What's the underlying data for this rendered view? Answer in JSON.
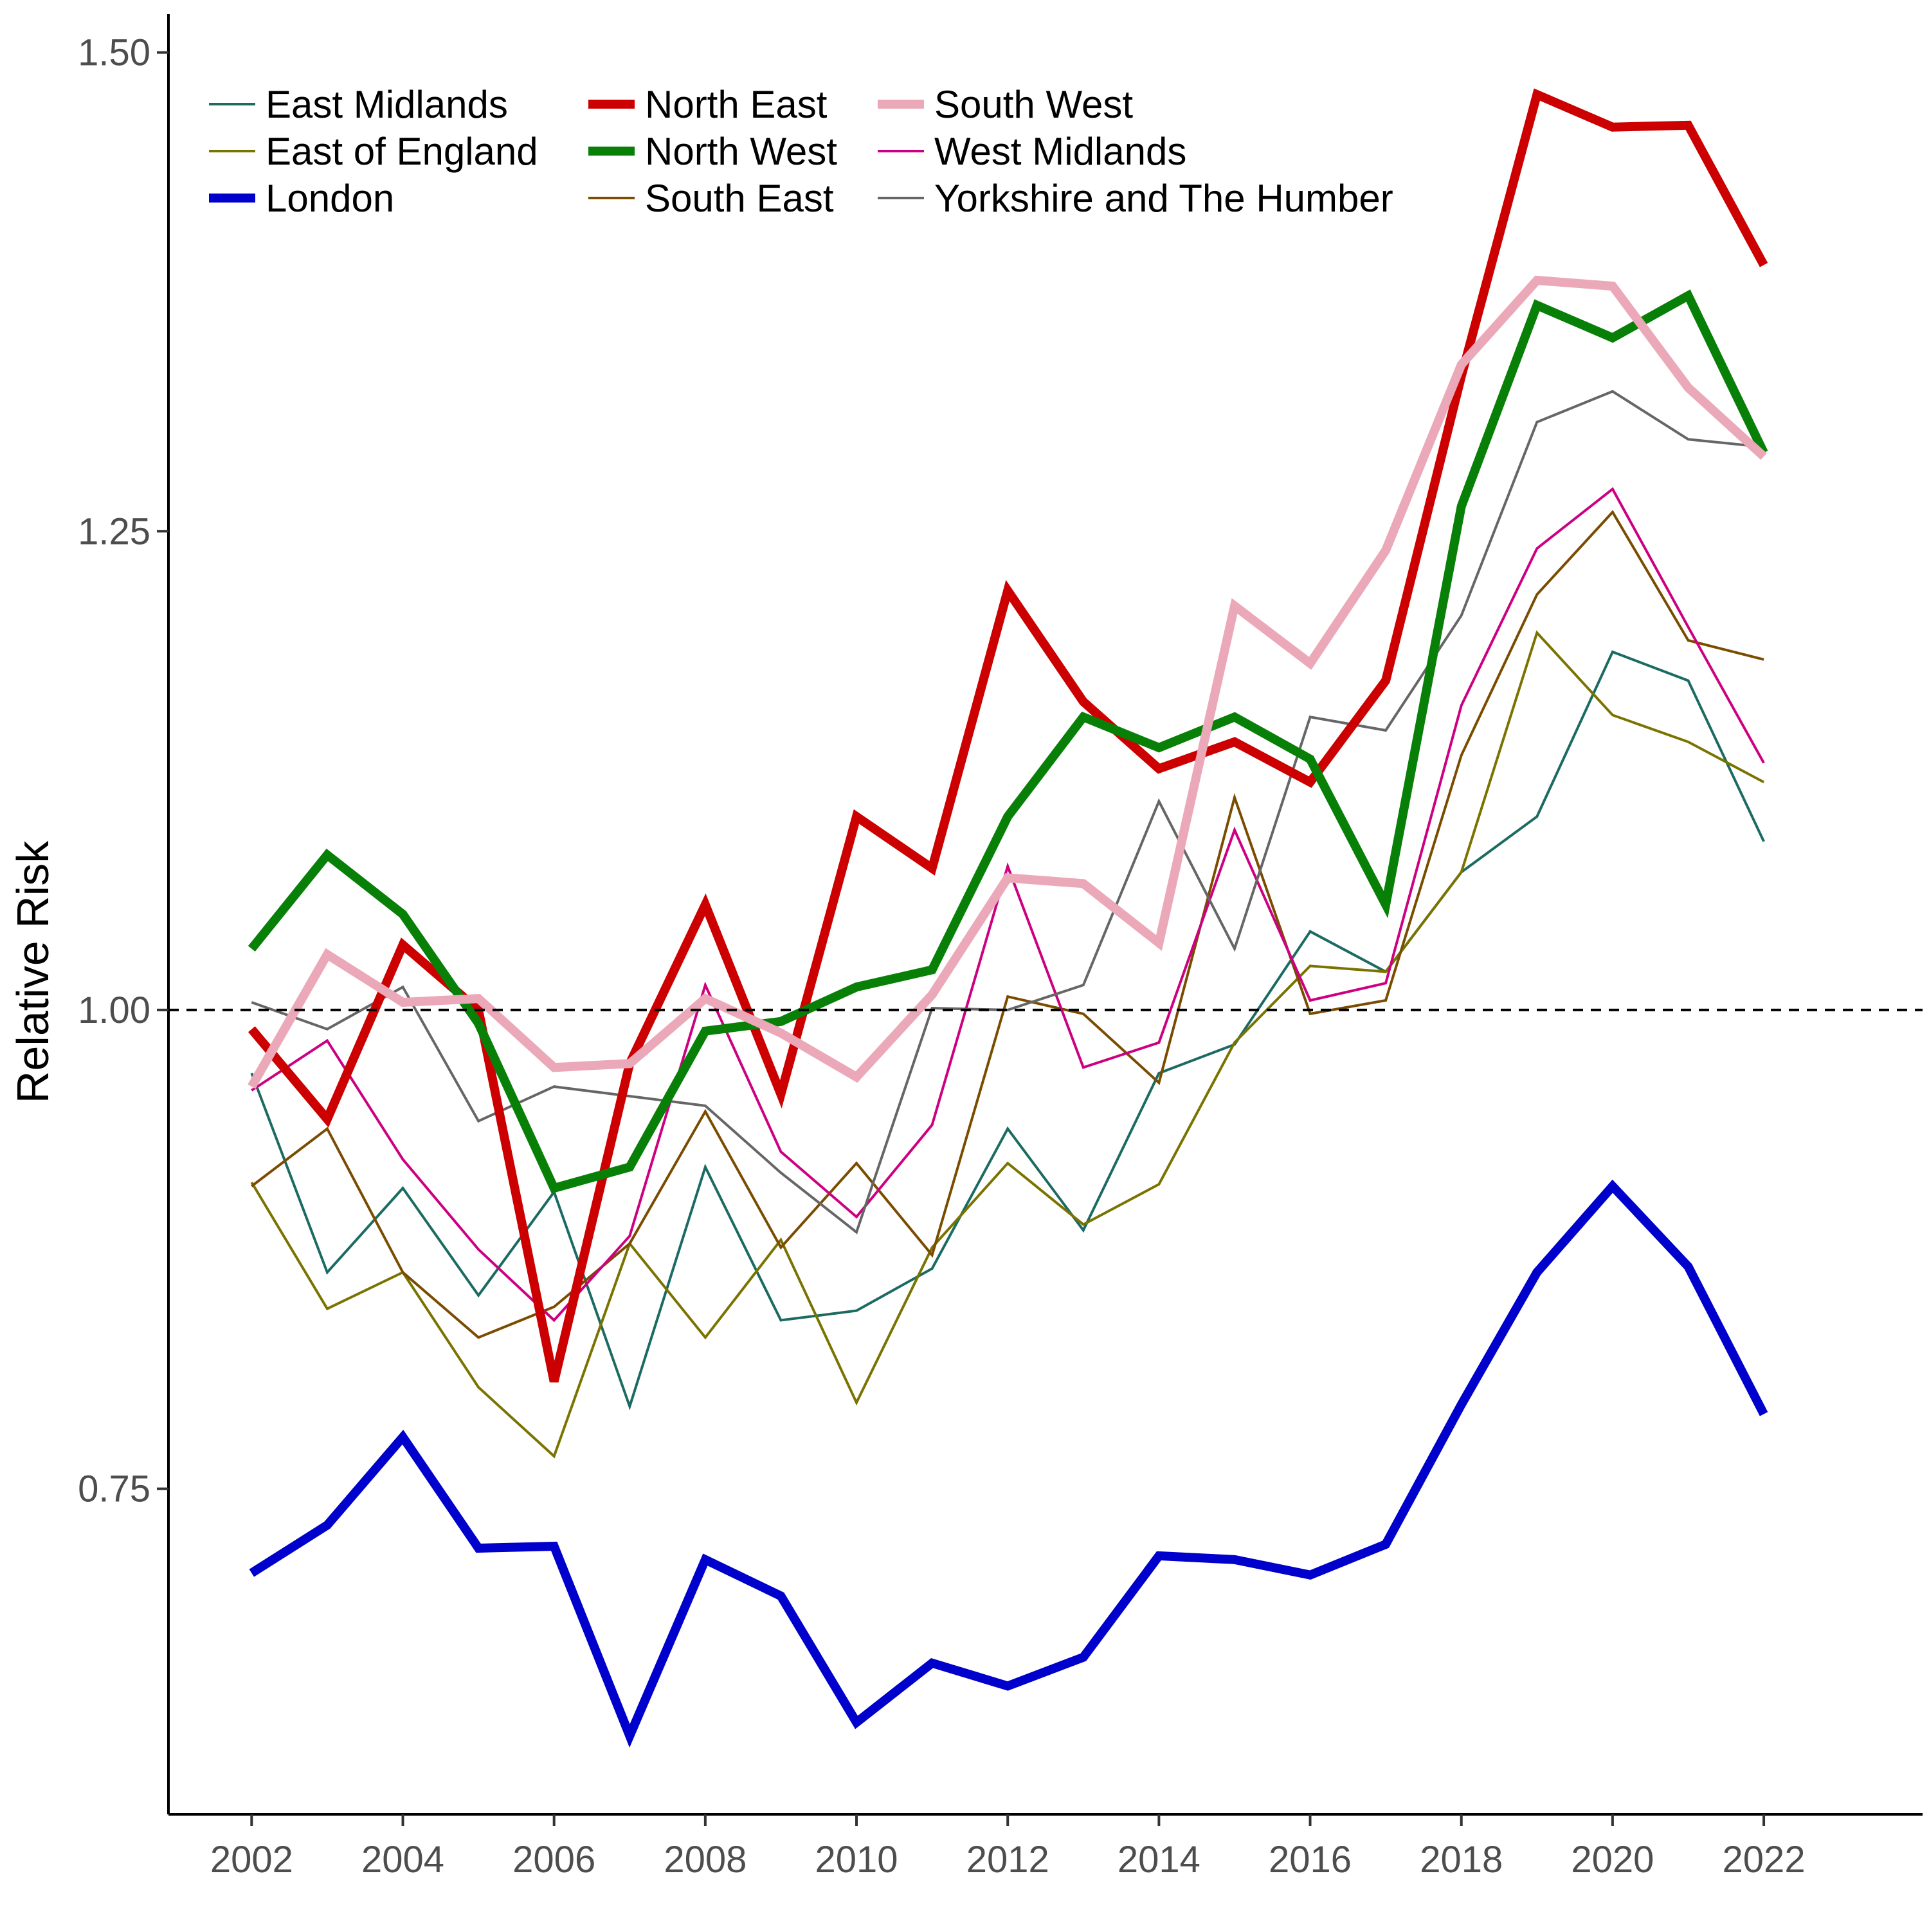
{
  "chart_data": {
    "type": "line",
    "title": "",
    "xlabel": "",
    "ylabel": "Relative Risk",
    "x": [
      2002,
      2003,
      2004,
      2005,
      2006,
      2007,
      2008,
      2009,
      2010,
      2011,
      2012,
      2013,
      2014,
      2015,
      2016,
      2017,
      2018,
      2019,
      2020,
      2021,
      2022
    ],
    "xlim": [
      2000.9,
      2024.1
    ],
    "ylim": [
      0.58,
      1.52
    ],
    "x_ticks": [
      "2002",
      "2004",
      "2006",
      "2008",
      "2010",
      "2012",
      "2014",
      "2016",
      "2018",
      "2020",
      "2022"
    ],
    "y_ticks": [
      "0.75",
      "1.00",
      "1.25",
      "1.50"
    ],
    "reference_line": 1.0,
    "grid": false,
    "legend_position": "top-left",
    "series": [
      {
        "name": "East Midlands",
        "color": "#1b6b63",
        "emphasis": "thin",
        "values": [
          0.967,
          0.863,
          0.907,
          0.851,
          0.905,
          0.793,
          0.918,
          0.838,
          0.843,
          0.865,
          0.938,
          0.885,
          0.967,
          0.982,
          1.041,
          1.02,
          1.072,
          1.101,
          1.187,
          1.172,
          1.088
        ]
      },
      {
        "name": "East of England",
        "color": "#7a7300",
        "emphasis": "thin",
        "values": [
          0.91,
          0.844,
          0.863,
          0.803,
          0.767,
          0.878,
          0.829,
          0.88,
          0.795,
          0.876,
          0.92,
          0.888,
          0.909,
          0.983,
          1.023,
          1.02,
          1.072,
          1.197,
          1.154,
          1.14,
          1.119
        ]
      },
      {
        "name": "London",
        "color": "#0000cc",
        "emphasis": "thick",
        "values": [
          0.706,
          0.731,
          0.777,
          0.719,
          0.72,
          0.621,
          0.713,
          0.694,
          0.628,
          0.659,
          0.647,
          0.662,
          0.715,
          0.713,
          0.705,
          0.721,
          0.794,
          0.863,
          0.908,
          0.866,
          0.789
        ]
      },
      {
        "name": "North East",
        "color": "#cc0000",
        "emphasis": "thick",
        "values": [
          0.99,
          0.943,
          1.034,
          1.0,
          0.806,
          0.972,
          1.055,
          0.956,
          1.101,
          1.074,
          1.219,
          1.161,
          1.126,
          1.14,
          1.119,
          1.172,
          1.331,
          1.478,
          1.461,
          1.462,
          1.389
        ]
      },
      {
        "name": "North West",
        "color": "#088008",
        "emphasis": "thick",
        "values": [
          1.032,
          1.081,
          1.05,
          0.993,
          0.907,
          0.918,
          0.989,
          0.994,
          1.012,
          1.021,
          1.101,
          1.153,
          1.137,
          1.153,
          1.131,
          1.055,
          1.263,
          1.368,
          1.351,
          1.373,
          1.291
        ]
      },
      {
        "name": "South East",
        "color": "#7a4c00",
        "emphasis": "thin",
        "values": [
          0.908,
          0.938,
          0.863,
          0.829,
          0.845,
          0.878,
          0.947,
          0.876,
          0.92,
          0.872,
          1.007,
          0.998,
          0.962,
          1.111,
          0.998,
          1.005,
          1.133,
          1.217,
          1.26,
          1.193,
          1.183
        ]
      },
      {
        "name": "South West",
        "color": "#eba8b8",
        "emphasis": "thick",
        "values": [
          0.96,
          1.029,
          1.004,
          1.006,
          0.97,
          0.972,
          1.006,
          0.988,
          0.965,
          1.008,
          1.069,
          1.066,
          1.035,
          1.211,
          1.181,
          1.24,
          1.337,
          1.381,
          1.378,
          1.325,
          1.289
        ]
      },
      {
        "name": "West Midlands",
        "color": "#cc0080",
        "emphasis": "thin",
        "values": [
          0.958,
          0.984,
          0.922,
          0.875,
          0.838,
          0.882,
          1.013,
          0.926,
          0.892,
          0.94,
          1.075,
          0.97,
          0.983,
          1.094,
          1.005,
          1.014,
          1.159,
          1.241,
          1.272,
          1.2,
          1.129
        ]
      },
      {
        "name": "Yorkshire and The Humber",
        "color": "#666666",
        "emphasis": "thin",
        "values": [
          1.004,
          0.99,
          1.012,
          0.942,
          0.96,
          0.955,
          0.95,
          0.915,
          0.884,
          1.001,
          1.0,
          1.013,
          1.109,
          1.032,
          1.153,
          1.146,
          1.206,
          1.307,
          1.323,
          1.298,
          1.294
        ]
      }
    ]
  }
}
